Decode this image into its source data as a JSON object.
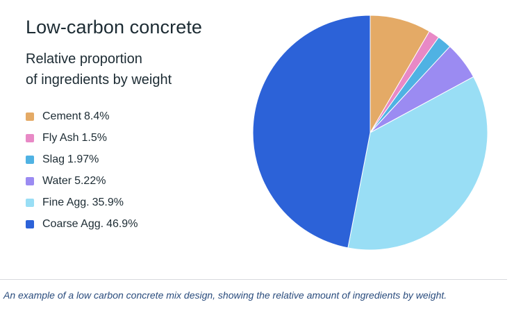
{
  "chart_data": {
    "type": "pie",
    "title": "Low-carbon concrete",
    "subtitle_line1": "Relative proportion",
    "subtitle_line2": "of ingredients by weight",
    "start_angle_deg": 0,
    "direction": "clockwise",
    "legend_placement": "left",
    "slices": [
      {
        "name": "Cement",
        "value_label": "8.4%",
        "value": 8.4,
        "color": "#e4aa66"
      },
      {
        "name": "Fly Ash",
        "value_label": "1.5%",
        "value": 1.5,
        "color": "#e889c6"
      },
      {
        "name": "Slag",
        "value_label": "1.97%",
        "value": 1.97,
        "color": "#4fb2e3"
      },
      {
        "name": "Water",
        "value_label": "5.22%",
        "value": 5.22,
        "color": "#9b8bf2"
      },
      {
        "name": "Fine Agg.",
        "value_label": "35.9%",
        "value": 35.9,
        "color": "#99def5"
      },
      {
        "name": "Coarse Agg.",
        "value_label": "46.9%",
        "value": 46.9,
        "color": "#2c62d8"
      }
    ]
  },
  "caption": "An example of a low carbon concrete mix design, showing the relative amount of ingredients by weight."
}
